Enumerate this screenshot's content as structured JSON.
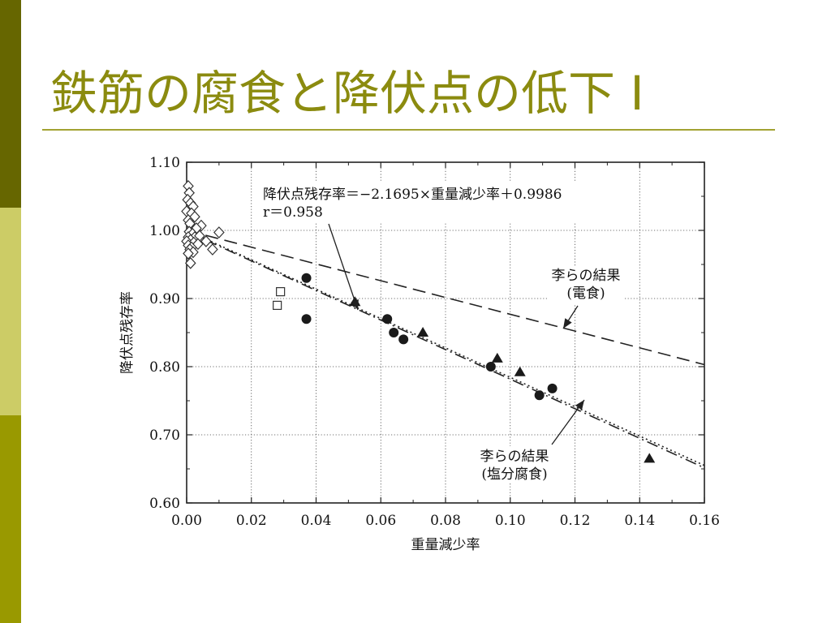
{
  "slide": {
    "title": "鉄筋の腐食と降伏点の低下 I",
    "colors": {
      "title_text": "#8b8b0f",
      "title_rule": "#a2a232",
      "sidebar": [
        "#666600",
        "#cccc66",
        "#999900"
      ],
      "axis": "#222222",
      "grid": "#444444"
    }
  },
  "chart_data": {
    "type": "scatter",
    "xlabel": "重量減少率",
    "ylabel": "降伏点残存率",
    "xlim": [
      0.0,
      0.16
    ],
    "ylim": [
      0.6,
      1.1
    ],
    "xticks": [
      "0.00",
      "0.02",
      "0.04",
      "0.06",
      "0.08",
      "0.10",
      "0.12",
      "0.14",
      "0.16"
    ],
    "yticks": [
      "0.60",
      "0.70",
      "0.80",
      "0.90",
      "1.00",
      "1.10"
    ],
    "grid": "dotted",
    "series": [
      {
        "marker": "diamond-open",
        "points": [
          [
            0.0005,
            1.065
          ],
          [
            0.0008,
            1.055
          ],
          [
            0.0003,
            1.045
          ],
          [
            0.0012,
            1.04
          ],
          [
            0.002,
            1.035
          ],
          [
            0.0,
            1.028
          ],
          [
            0.0015,
            1.025
          ],
          [
            0.0025,
            1.02
          ],
          [
            0.0005,
            1.015
          ],
          [
            0.001,
            1.01
          ],
          [
            0.0045,
            1.007
          ],
          [
            0.003,
            1.003
          ],
          [
            0.0008,
            0.998
          ],
          [
            0.0018,
            0.995
          ],
          [
            0.0005,
            0.99
          ],
          [
            0.0025,
            0.99
          ],
          [
            0.004,
            0.992
          ],
          [
            0.0012,
            0.986
          ],
          [
            0.01,
            0.997
          ],
          [
            0.006,
            0.984
          ],
          [
            0.0,
            0.984
          ],
          [
            0.0022,
            0.982
          ],
          [
            0.0005,
            0.978
          ],
          [
            0.0015,
            0.975
          ],
          [
            0.0035,
            0.98
          ],
          [
            0.001,
            0.972
          ],
          [
            0.002,
            0.968
          ],
          [
            0.008,
            0.972
          ],
          [
            0.0005,
            0.966
          ],
          [
            0.0012,
            0.952
          ]
        ]
      },
      {
        "marker": "square-open",
        "points": [
          [
            0.029,
            0.91
          ],
          [
            0.028,
            0.89
          ]
        ]
      },
      {
        "marker": "circle-filled",
        "points": [
          [
            0.037,
            0.93
          ],
          [
            0.037,
            0.87
          ],
          [
            0.062,
            0.87
          ],
          [
            0.064,
            0.85
          ],
          [
            0.067,
            0.84
          ],
          [
            0.094,
            0.8
          ],
          [
            0.109,
            0.758
          ],
          [
            0.113,
            0.768
          ]
        ]
      },
      {
        "marker": "triangle-filled",
        "points": [
          [
            0.052,
            0.895
          ],
          [
            0.073,
            0.85
          ],
          [
            0.096,
            0.812
          ],
          [
            0.103,
            0.792
          ],
          [
            0.143,
            0.665
          ]
        ]
      }
    ],
    "lines": [
      {
        "style": "dash-dot",
        "slope": -2.1695,
        "intercept": 0.9986,
        "x_range": [
          0.0,
          0.16
        ]
      },
      {
        "style": "dashed",
        "points": [
          [
            0.0,
            1.0
          ],
          [
            0.16,
            0.803
          ]
        ]
      },
      {
        "style": "dotted",
        "points": [
          [
            0.0,
            1.0
          ],
          [
            0.16,
            0.655
          ]
        ]
      }
    ],
    "annotations": {
      "regression": {
        "line1": "降伏点残存率＝−2.1695×重量減少率＋0.9986",
        "line2": "r＝0.958"
      },
      "lee_electro": {
        "line1": "李らの結果",
        "line2": "(電食)"
      },
      "lee_salt": {
        "line1": "李らの結果",
        "line2": "(塩分腐食)"
      }
    }
  }
}
